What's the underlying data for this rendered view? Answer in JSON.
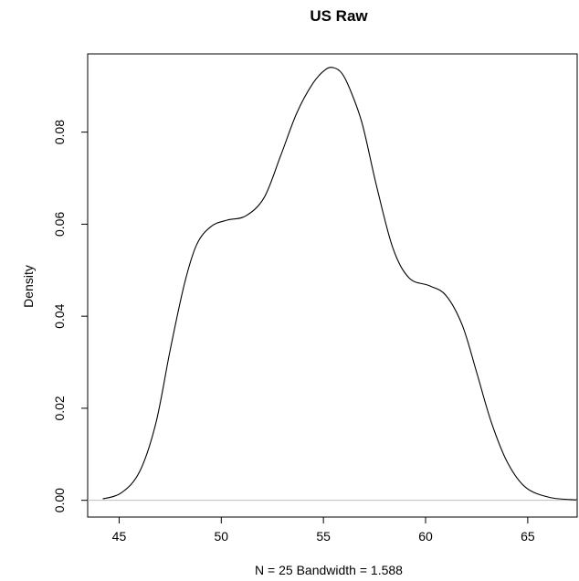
{
  "chart_data": {
    "type": "line",
    "title": "US Raw",
    "xlabel": "N = 25   Bandwidth = 1.588",
    "ylabel": "Density",
    "xlim": [
      43.46,
      67.42
    ],
    "ylim": [
      -0.00364,
      0.097
    ],
    "x_ticks": [
      45,
      50,
      55,
      60,
      65
    ],
    "y_ticks": [
      0.0,
      0.02,
      0.04,
      0.06,
      0.08
    ],
    "x_tick_labels": [
      "45",
      "50",
      "55",
      "60",
      "65"
    ],
    "y_tick_labels": [
      "0.00",
      "0.02",
      "0.04",
      "0.06",
      "0.08"
    ],
    "baseline_y": 0,
    "grid": false,
    "series": [
      {
        "x": [
          44.2,
          45.1,
          46.0,
          46.8,
          47.5,
          48.2,
          48.8,
          49.5,
          50.3,
          51.2,
          52.1,
          52.9,
          53.7,
          54.5,
          55.1,
          55.5,
          55.9,
          56.3,
          56.9,
          57.6,
          58.4,
          59.2,
          60.2,
          61.0,
          61.8,
          62.5,
          63.2,
          64.0,
          64.9,
          66.1,
          67.4
        ],
        "y": [
          0.0003,
          0.0016,
          0.0062,
          0.0168,
          0.0327,
          0.0471,
          0.0556,
          0.0595,
          0.0609,
          0.0618,
          0.0658,
          0.0748,
          0.0842,
          0.0907,
          0.0936,
          0.094,
          0.0928,
          0.0893,
          0.0818,
          0.0683,
          0.0548,
          0.0483,
          0.0466,
          0.0445,
          0.038,
          0.0278,
          0.0172,
          0.0083,
          0.0028,
          0.0006,
          0.0001
        ]
      }
    ]
  }
}
